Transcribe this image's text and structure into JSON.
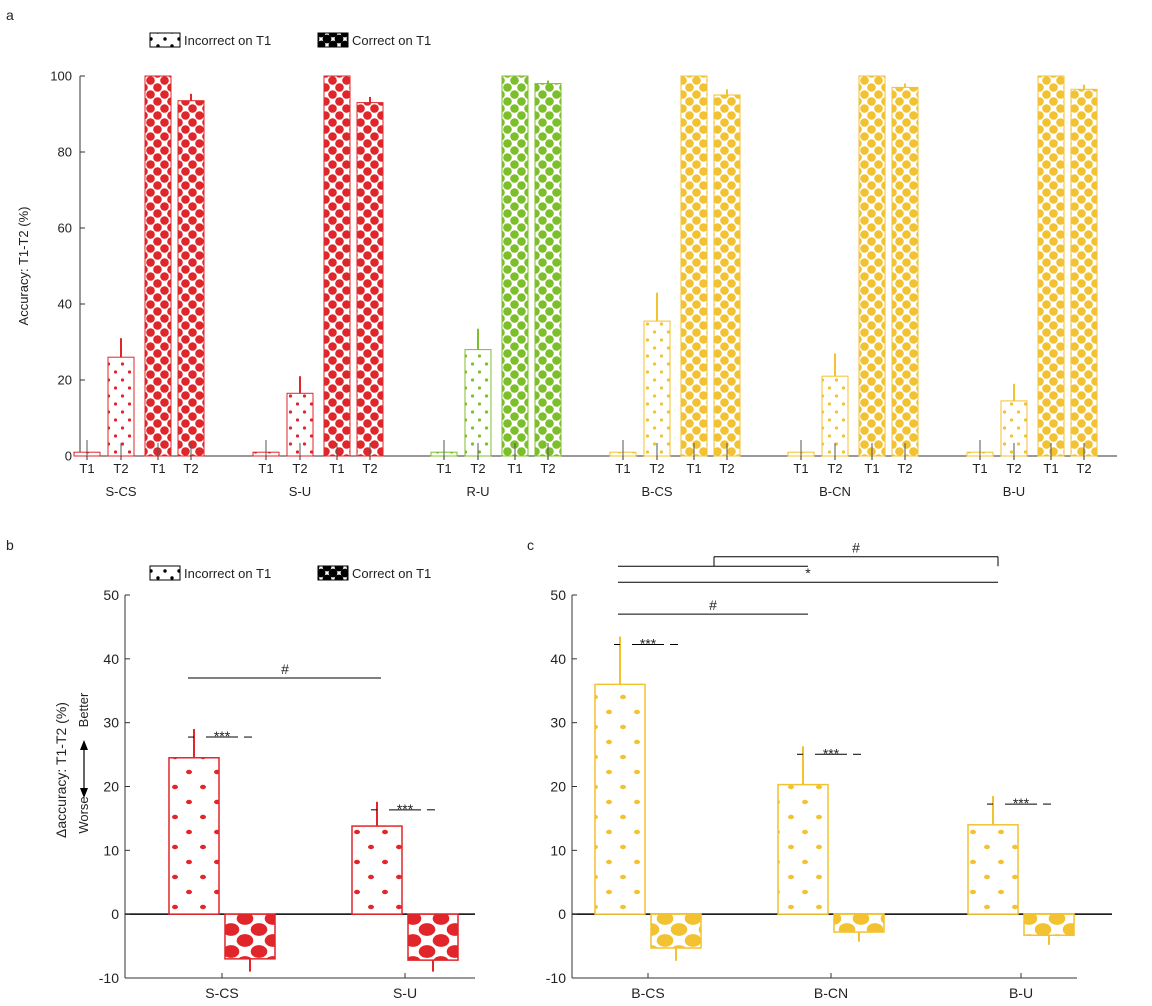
{
  "panel_labels": {
    "a": "a",
    "b": "b",
    "c": "c"
  },
  "legend": {
    "incorrect": "Incorrect on T1",
    "correct": "Correct on T1"
  },
  "colors": {
    "red": "#e0262a",
    "green": "#7cbf2a",
    "yellow": "#f2c230",
    "axis": "#333333",
    "error_dark": "#555555"
  },
  "chart_data": [
    {
      "type": "bar",
      "panel": "a",
      "ylabel": "Accuracy: T1-T2 (%)",
      "ylim": [
        0,
        100
      ],
      "yticks": [
        "0",
        "20",
        "40",
        "60",
        "80",
        "100"
      ],
      "bar_labels": [
        "T1",
        "T2",
        "T1",
        "T2"
      ],
      "groups": [
        {
          "name": "S-CS",
          "color": "red",
          "values": [
            1,
            26,
            100,
            93.5
          ],
          "errors": [
            0,
            5,
            0,
            1.8
          ]
        },
        {
          "name": "S-U",
          "color": "red",
          "values": [
            1,
            16.5,
            100,
            93
          ],
          "errors": [
            0,
            4.5,
            0,
            1.5
          ]
        },
        {
          "name": "R-U",
          "color": "green",
          "values": [
            1,
            28,
            100,
            98
          ],
          "errors": [
            0,
            5.5,
            0,
            0.8
          ]
        },
        {
          "name": "B-CS",
          "color": "yellow",
          "values": [
            1,
            35.5,
            100,
            95
          ],
          "errors": [
            0,
            7.5,
            0,
            1.5
          ]
        },
        {
          "name": "B-CN",
          "color": "yellow",
          "values": [
            1,
            21,
            100,
            97
          ],
          "errors": [
            0,
            6,
            0,
            1
          ]
        },
        {
          "name": "B-U",
          "color": "yellow",
          "values": [
            1,
            14.5,
            100,
            96.5
          ],
          "errors": [
            0,
            4.5,
            0,
            1.2
          ]
        }
      ]
    },
    {
      "type": "bar",
      "panel": "b",
      "ylabel": "Δaccuracy: T1-T2 (%)",
      "ylabel_better": "Better",
      "ylabel_worse": "Worse",
      "ylim": [
        -10,
        50
      ],
      "yticks": [
        "-10",
        "0",
        "10",
        "20",
        "30",
        "40",
        "50"
      ],
      "groups": [
        {
          "name": "S-CS",
          "color": "red",
          "incorrect": 24.5,
          "incorrect_err": 4.5,
          "correct": -7,
          "correct_err": 2
        },
        {
          "name": "S-U",
          "color": "red",
          "incorrect": 13.8,
          "incorrect_err": 3.8,
          "correct": -7.2,
          "correct_err": 1.8
        }
      ],
      "significance": [
        {
          "label": "***",
          "within": 0
        },
        {
          "label": "***",
          "within": 1
        },
        {
          "label": "#",
          "between": [
            0,
            1
          ],
          "y": 37
        }
      ]
    },
    {
      "type": "bar",
      "panel": "c",
      "ylim": [
        -10,
        50
      ],
      "yticks": [
        "-10",
        "0",
        "10",
        "20",
        "30",
        "40",
        "50"
      ],
      "groups": [
        {
          "name": "B-CS",
          "color": "yellow",
          "incorrect": 36,
          "incorrect_err": 7.5,
          "correct": -5.3,
          "correct_err": 2
        },
        {
          "name": "B-CN",
          "color": "yellow",
          "incorrect": 20.3,
          "incorrect_err": 6,
          "correct": -2.8,
          "correct_err": 1.5
        },
        {
          "name": "B-U",
          "color": "yellow",
          "incorrect": 14,
          "incorrect_err": 4.5,
          "correct": -3.3,
          "correct_err": 1.5
        }
      ],
      "significance": [
        {
          "label": "***",
          "within": 0
        },
        {
          "label": "***",
          "within": 1
        },
        {
          "label": "***",
          "within": 2
        },
        {
          "label": "#",
          "between": [
            0,
            1
          ],
          "y": 47
        },
        {
          "label": "*",
          "between": [
            0,
            2
          ],
          "y": 52
        },
        {
          "label": "#",
          "between": [
            "0-1",
            2
          ],
          "y": 56
        }
      ]
    }
  ]
}
